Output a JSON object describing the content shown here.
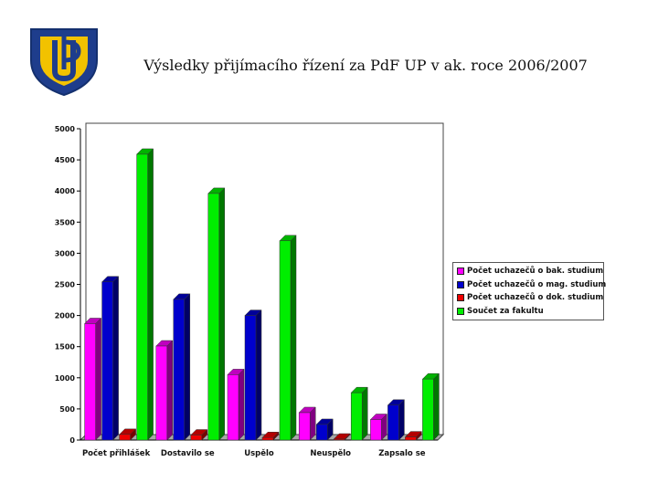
{
  "page": {
    "title": "Výsledky přijímacího řízení za PdF UP v ak. roce 2006/2007",
    "logo_text": "UP"
  },
  "chart_data": {
    "type": "bar",
    "categories": [
      "Počet přihlášek",
      "Dostavilo se",
      "Uspělo",
      "Neuspělo",
      "Zapsalo se"
    ],
    "series": [
      {
        "name": "Počet uchazečů o bak. studium",
        "color": "#ff00ff",
        "values": [
          1870,
          1510,
          1050,
          440,
          330
        ]
      },
      {
        "name": "Počet uchazečů o mag. studium",
        "color": "#0000cc",
        "values": [
          2540,
          2260,
          2000,
          250,
          560
        ]
      },
      {
        "name": "Počet uchazečů o dok. studium",
        "color": "#ee0000",
        "values": [
          90,
          80,
          40,
          15,
          50
        ]
      },
      {
        "name": "Součet za fakultu",
        "color": "#00ee00",
        "values": [
          4590,
          3960,
          3200,
          760,
          980
        ]
      }
    ],
    "ylim": [
      0,
      5000
    ],
    "yticks": [
      0,
      500,
      1000,
      1500,
      2000,
      2500,
      3000,
      3500,
      4000,
      4500,
      5000
    ],
    "legend_position": "right",
    "grid": false
  }
}
